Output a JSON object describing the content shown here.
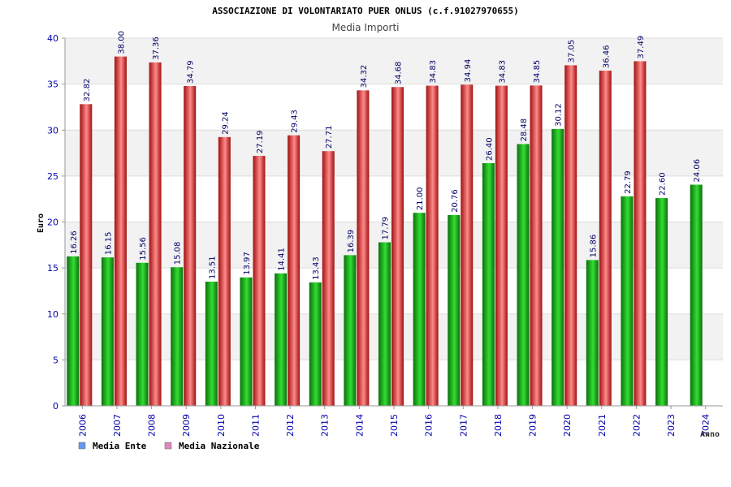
{
  "chart_data": {
    "type": "bar",
    "title": "ASSOCIAZIONE DI VOLONTARIATO PUER ONLUS (c.f.91027970655)",
    "subtitle": "Media Importi",
    "xlabel": "Anno",
    "ylabel": "Euro",
    "ylim": [
      0,
      40
    ],
    "yticks": [
      0,
      5,
      10,
      15,
      20,
      25,
      30,
      35,
      40
    ],
    "grid": true,
    "legend_position": "bottom-left",
    "categories": [
      "2006",
      "2007",
      "2008",
      "2009",
      "2010",
      "2011",
      "2012",
      "2013",
      "2014",
      "2015",
      "2016",
      "2017",
      "2018",
      "2019",
      "2020",
      "2021",
      "2022",
      "2023",
      "2024"
    ],
    "series": [
      {
        "name": "Media Ente",
        "legend_color": "#6699ee",
        "color": "#1aa81a",
        "values": [
          16.26,
          16.15,
          15.56,
          15.08,
          13.51,
          13.97,
          14.41,
          13.43,
          16.39,
          17.79,
          21.0,
          20.76,
          26.4,
          28.48,
          30.12,
          15.86,
          22.79,
          22.6,
          24.06
        ],
        "labels": [
          "16.26",
          "16.15",
          "15.56",
          "15.08",
          "13.51",
          "13.97",
          "14.41",
          "13.43",
          "16.39",
          "17.79",
          "21.00",
          "20.76",
          "26.40",
          "28.48",
          "30.12",
          "15.86",
          "22.79",
          "22.60",
          "24.06"
        ]
      },
      {
        "name": "Media Nazionale",
        "legend_color": "#dd88bb",
        "color": "#e02020",
        "values": [
          32.82,
          38.0,
          37.36,
          34.79,
          29.24,
          27.19,
          29.43,
          27.71,
          34.32,
          34.68,
          34.83,
          34.94,
          34.83,
          34.85,
          37.05,
          36.46,
          37.49,
          null,
          null
        ],
        "labels": [
          "32.82",
          "38.00",
          "37.36",
          "34.79",
          "29.24",
          "27.19",
          "29.43",
          "27.71",
          "34.32",
          "34.68",
          "34.83",
          "34.94",
          "34.83",
          "34.85",
          "37.05",
          "36.46",
          "37.49",
          null,
          null
        ]
      }
    ]
  },
  "colors": {
    "axis_text": "#0000aa",
    "band": "#f2f2f2",
    "grid": "#dddddd",
    "axis": "#999999",
    "label_text": "#000066"
  }
}
